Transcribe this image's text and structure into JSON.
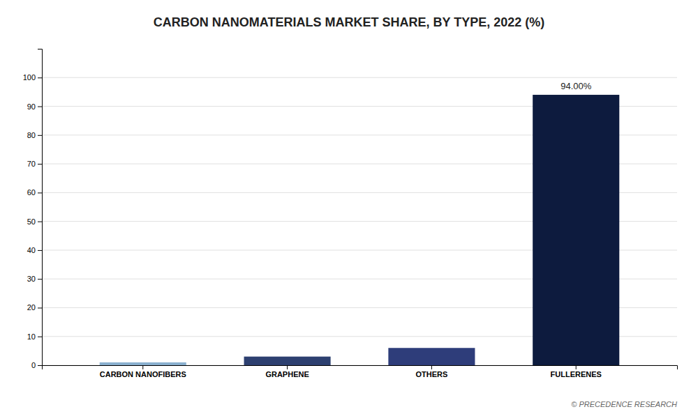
{
  "chart_data": {
    "type": "bar",
    "title": "CARBON NANOMATERIALS MARKET SHARE, BY TYPE, 2022 (%)",
    "categories": [
      "CARBON NANOFIBERS",
      "GRAPHENE",
      "OTHERS",
      "FULLERENES"
    ],
    "values": [
      1.0,
      3.0,
      6.0,
      94.0
    ],
    "colors": [
      "#8ab0cf",
      "#2d4070",
      "#2e3d7a",
      "#0d1b3e"
    ],
    "ylim": [
      0,
      110
    ],
    "yticks": [
      0,
      10,
      20,
      30,
      40,
      50,
      60,
      70,
      80,
      90,
      100
    ],
    "grid": true,
    "annotations": [
      {
        "text": "94.00%",
        "x": "FULLERENES",
        "y": 94.0
      }
    ],
    "source": "© PRECEDENCE RESEARCH"
  }
}
